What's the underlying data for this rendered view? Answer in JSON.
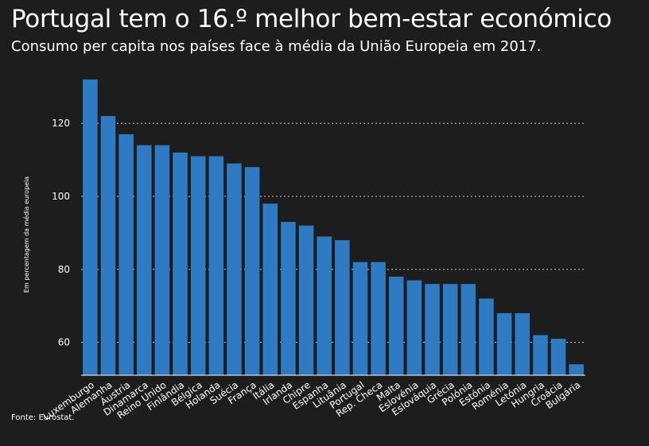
{
  "header": {
    "title": "Portugal tem o 16.º melhor bem-estar económico",
    "subtitle": "Consumo per capita nos países face à média da União Europeia em 2017."
  },
  "footer": {
    "source": "Fonte: Eurostat."
  },
  "colors": {
    "background": "#1d1d1d",
    "bar": "#2e7bc4",
    "text": "#ffffff",
    "grid": "#cccccc"
  },
  "chart_data": {
    "type": "bar",
    "title": "Portugal tem o 16.º melhor bem-estar económico",
    "subtitle": "Consumo per capita nos países face à média da União Europeia em 2017.",
    "xlabel": "",
    "ylabel": "Em percentagem da média europeia",
    "ylim": [
      51,
      132
    ],
    "yticks": [
      60,
      80,
      100,
      120
    ],
    "grid": "horizontal dotted",
    "categories": [
      "Luxemburgo",
      "Alemanha",
      "Áustria",
      "Dinamarca",
      "Reino Unido",
      "Finlândia",
      "Bélgica",
      "Holanda",
      "Suécia",
      "França",
      "Itália",
      "Irlanda",
      "Chipre",
      "Espanha",
      "Lituânia",
      "Portugal",
      "Rep. Checa",
      "Malta",
      "Eslovénia",
      "Eslováquia",
      "Grécia",
      "Polónia",
      "Estónia",
      "Roménia",
      "Letónia",
      "Hungria",
      "Croácia",
      "Bulgária"
    ],
    "values": [
      132,
      122,
      117,
      114,
      114,
      112,
      111,
      111,
      109,
      108,
      98,
      93,
      92,
      89,
      88,
      82,
      82,
      78,
      77,
      76,
      76,
      76,
      72,
      68,
      68,
      62,
      61,
      54
    ]
  }
}
